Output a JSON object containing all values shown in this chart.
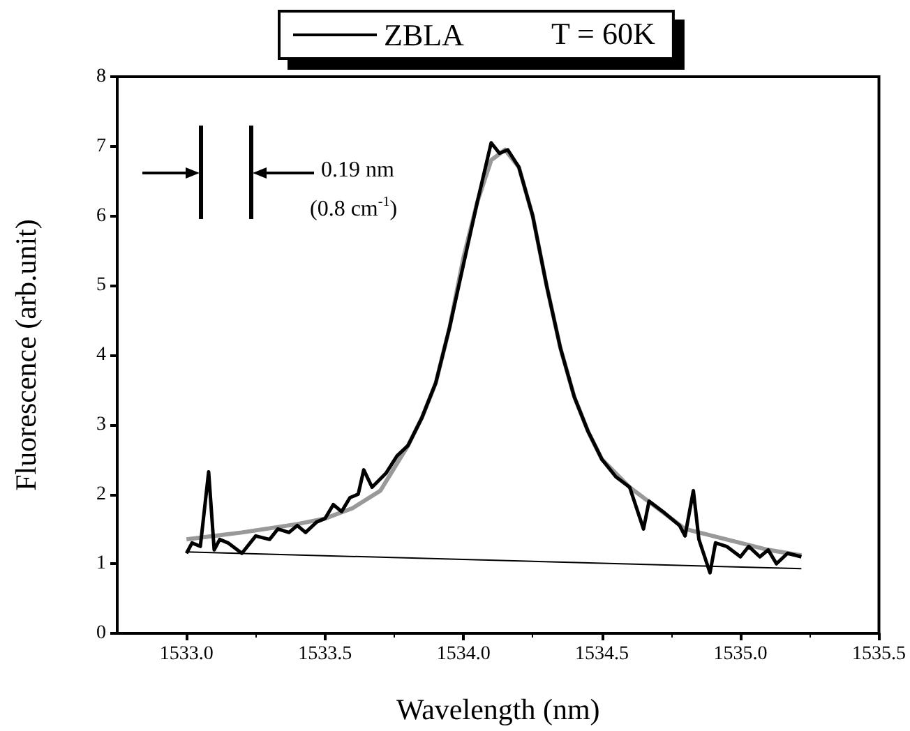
{
  "chart_data": {
    "type": "line",
    "xlabel": "Wavelength (nm)",
    "ylabel": "Fluorescence (arb.unit)",
    "legend_title": "T = 60K",
    "legend": "top",
    "xlim": [
      1532.75,
      1535.5
    ],
    "ylim": [
      0,
      8
    ],
    "xticks": [
      {
        "value": 1533,
        "label": "1533.0"
      },
      1533.5,
      {
        "value": 1534,
        "label": "1534.0"
      },
      1534.5,
      {
        "value": 1535,
        "label": "1535.0"
      },
      1535.5
    ],
    "yticks": [
      0,
      1,
      2,
      3,
      4,
      5,
      6,
      7,
      8
    ],
    "grid": false,
    "marker": "none",
    "line_style": "solid",
    "annotations": [
      "0.19 nm",
      "(0.8 cm$^{-1}$)"
    ],
    "series": [
      {
        "name": "ZBLA",
        "color": "#000000",
        "x": [
          1533.0,
          1533.02,
          1533.05,
          1533.08,
          1533.1,
          1533.12,
          1533.15,
          1533.2,
          1533.25,
          1533.3,
          1533.33,
          1533.37,
          1533.4,
          1533.43,
          1533.47,
          1533.5,
          1533.53,
          1533.56,
          1533.59,
          1533.62,
          1533.64,
          1533.67,
          1533.72,
          1533.76,
          1533.8,
          1533.85,
          1533.9,
          1533.95,
          1534.0,
          1534.05,
          1534.1,
          1534.13,
          1534.16,
          1534.2,
          1534.25,
          1534.3,
          1534.35,
          1534.4,
          1534.45,
          1534.5,
          1534.55,
          1534.6,
          1534.65,
          1534.67,
          1534.72,
          1534.78,
          1534.8,
          1534.83,
          1534.85,
          1534.89,
          1534.91,
          1534.95,
          1535.0,
          1535.03,
          1535.07,
          1535.1,
          1535.13,
          1535.17,
          1535.22
        ],
        "values": [
          1.15,
          1.3,
          1.25,
          2.32,
          1.2,
          1.35,
          1.3,
          1.15,
          1.4,
          1.35,
          1.5,
          1.45,
          1.55,
          1.45,
          1.6,
          1.65,
          1.85,
          1.75,
          1.95,
          2.0,
          2.35,
          2.1,
          2.3,
          2.55,
          2.7,
          3.1,
          3.6,
          4.4,
          5.3,
          6.2,
          7.05,
          6.9,
          6.95,
          6.7,
          6.0,
          5.0,
          4.1,
          3.4,
          2.9,
          2.5,
          2.25,
          2.1,
          1.5,
          1.9,
          1.75,
          1.55,
          1.4,
          2.05,
          1.35,
          0.87,
          1.3,
          1.25,
          1.1,
          1.25,
          1.1,
          1.2,
          1.0,
          1.15,
          1.1
        ]
      },
      {
        "color": "#999999",
        "x": [
          1533.0,
          1533.2,
          1533.4,
          1533.5,
          1533.6,
          1533.7,
          1533.8,
          1533.85,
          1533.9,
          1533.95,
          1534.0,
          1534.05,
          1534.1,
          1534.15,
          1534.2,
          1534.25,
          1534.3,
          1534.35,
          1534.4,
          1534.45,
          1534.5,
          1534.6,
          1534.7,
          1534.8,
          1534.9,
          1535.0,
          1535.1,
          1535.22
        ],
        "values": [
          1.35,
          1.45,
          1.57,
          1.65,
          1.8,
          2.05,
          2.7,
          3.1,
          3.6,
          4.4,
          5.4,
          6.2,
          6.8,
          6.95,
          6.7,
          6.0,
          5.0,
          4.1,
          3.4,
          2.9,
          2.5,
          2.1,
          1.8,
          1.5,
          1.4,
          1.3,
          1.2,
          1.12
        ]
      },
      {
        "color": "#000000",
        "x": [
          1533.0,
          1535.22
        ],
        "values": [
          1.17,
          0.93
        ]
      }
    ]
  }
}
